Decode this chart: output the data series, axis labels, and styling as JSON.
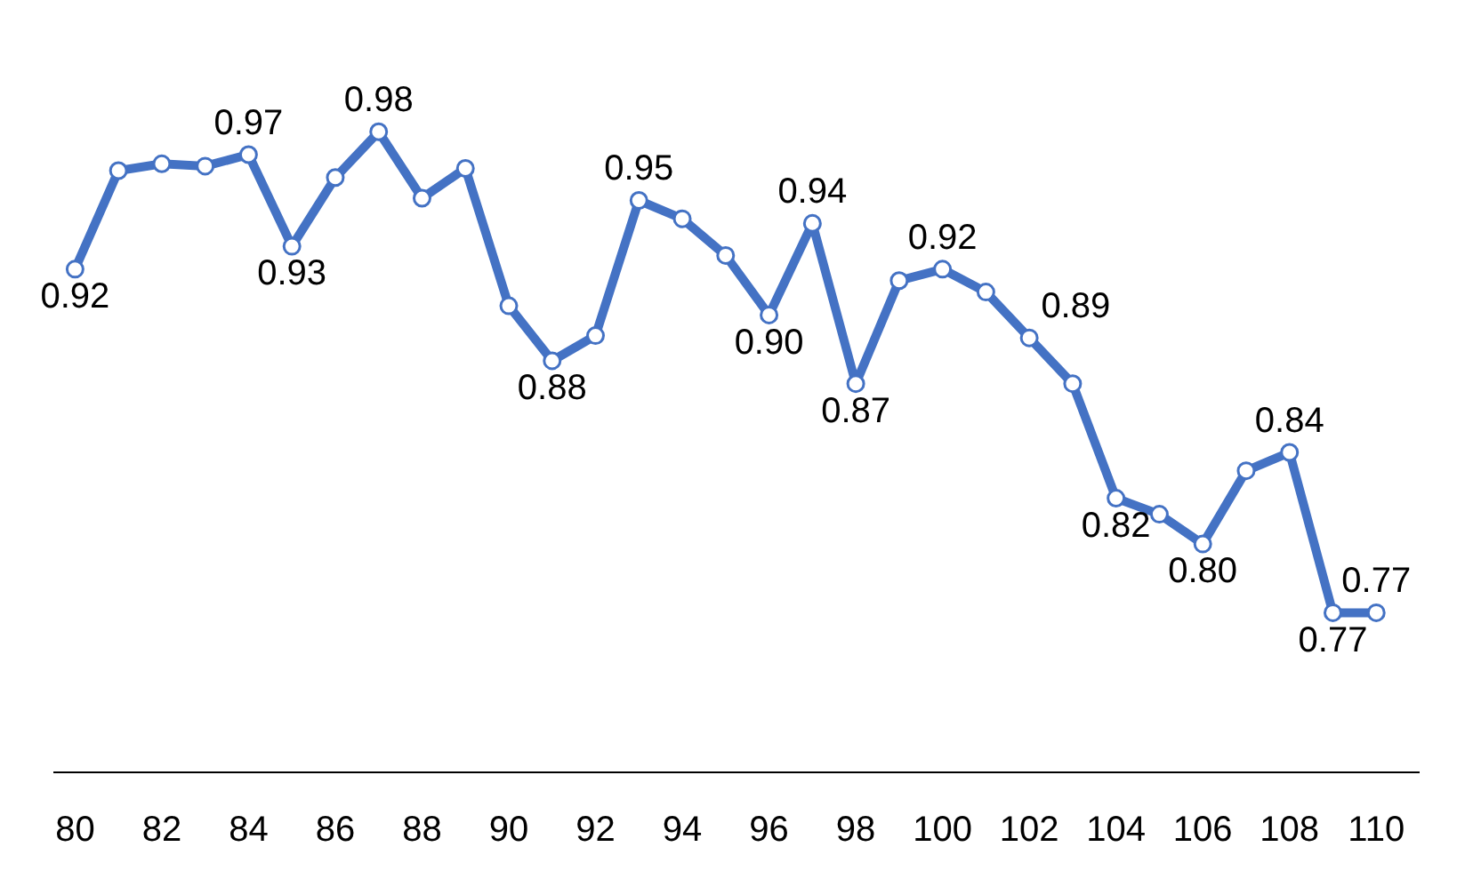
{
  "chart_data": {
    "type": "line",
    "x": [
      80,
      81,
      82,
      83,
      84,
      85,
      86,
      87,
      88,
      89,
      90,
      91,
      92,
      93,
      94,
      95,
      96,
      97,
      98,
      99,
      100,
      101,
      102,
      103,
      104,
      105,
      106,
      107,
      108,
      109,
      110
    ],
    "series": [
      {
        "color": "#4472c4",
        "values": [
          0.92,
          0.963,
          0.966,
          0.965,
          0.97,
          0.93,
          0.96,
          0.98,
          0.951,
          0.964,
          0.904,
          0.88,
          0.891,
          0.95,
          0.942,
          0.926,
          0.9,
          0.94,
          0.87,
          0.915,
          0.92,
          0.91,
          0.89,
          0.87,
          0.82,
          0.813,
          0.8,
          0.832,
          0.84,
          0.77,
          0.77
        ],
        "value_labels": [
          "0.92",
          null,
          null,
          null,
          "0.97",
          "0.93",
          null,
          "0.98",
          null,
          null,
          null,
          "0.88",
          null,
          "0.95",
          null,
          null,
          "0.90",
          "0.94",
          "0.87",
          null,
          "0.92",
          null,
          "0.89",
          null,
          "0.82",
          null,
          "0.80",
          null,
          "0.84",
          "0.77",
          "0.77"
        ]
      }
    ],
    "xlim": [
      79.5,
      111
    ],
    "xticks": [
      80,
      82,
      84,
      86,
      88,
      90,
      92,
      94,
      96,
      98,
      100,
      102,
      104,
      106,
      108,
      110
    ],
    "tick_labels": "x",
    "marker": "circle",
    "line_style": "solid"
  }
}
